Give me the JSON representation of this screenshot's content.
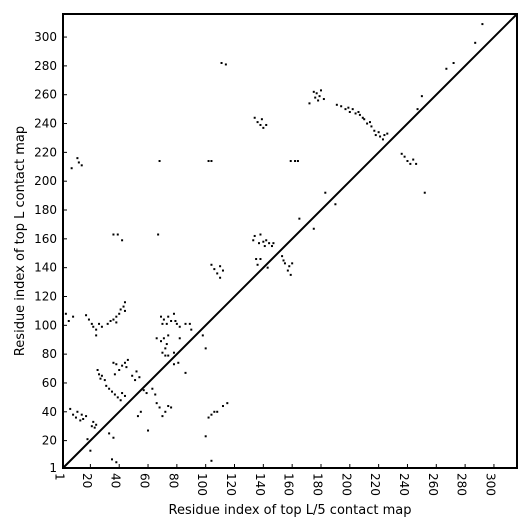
{
  "chart_data": {
    "type": "scatter",
    "title": "",
    "xlabel": "Residue index of top L/5 contact map",
    "ylabel": "Residue index of top L contact map",
    "xlim": [
      1,
      316
    ],
    "ylim": [
      1,
      316
    ],
    "xticks": [
      1,
      20,
      40,
      60,
      80,
      100,
      120,
      140,
      160,
      180,
      200,
      220,
      240,
      260,
      280,
      300
    ],
    "yticks": [
      1,
      20,
      40,
      60,
      80,
      100,
      120,
      140,
      160,
      180,
      200,
      220,
      240,
      260,
      280,
      300
    ],
    "grid": false,
    "diagonal": true,
    "marker_color": "#000000",
    "series": [
      {
        "points": [
          [
            11,
            216
          ],
          [
            12,
            213
          ],
          [
            14,
            211
          ],
          [
            7,
            209
          ],
          [
            3,
            108
          ],
          [
            5,
            103
          ],
          [
            8,
            106
          ],
          [
            17,
            107
          ],
          [
            19,
            104
          ],
          [
            21,
            101
          ],
          [
            22,
            99
          ],
          [
            24,
            97
          ],
          [
            24,
            93
          ],
          [
            26,
            101
          ],
          [
            28,
            99
          ],
          [
            32,
            101
          ],
          [
            34,
            103
          ],
          [
            36,
            104
          ],
          [
            38,
            102
          ],
          [
            38,
            106
          ],
          [
            40,
            108
          ],
          [
            41,
            111
          ],
          [
            43,
            113
          ],
          [
            44,
            116
          ],
          [
            44,
            110
          ],
          [
            36,
            163
          ],
          [
            39,
            163
          ],
          [
            42,
            159
          ],
          [
            66,
            91
          ],
          [
            69,
            89
          ],
          [
            71,
            91
          ],
          [
            73,
            87
          ],
          [
            74,
            93
          ],
          [
            68,
            214
          ],
          [
            67,
            163
          ],
          [
            69,
            106
          ],
          [
            70,
            101
          ],
          [
            71,
            104
          ],
          [
            74,
            106
          ],
          [
            73,
            101
          ],
          [
            76,
            103
          ],
          [
            78,
            108
          ],
          [
            79,
            103
          ],
          [
            80,
            101
          ],
          [
            82,
            99
          ],
          [
            86,
            101
          ],
          [
            89,
            101
          ],
          [
            90,
            97
          ],
          [
            72,
            84
          ],
          [
            74,
            79
          ],
          [
            78,
            73
          ],
          [
            82,
            91
          ],
          [
            86,
            67
          ],
          [
            98,
            93
          ],
          [
            100,
            84
          ],
          [
            100,
            23
          ],
          [
            102,
            214
          ],
          [
            104,
            214
          ],
          [
            104,
            142
          ],
          [
            106,
            139
          ],
          [
            108,
            136
          ],
          [
            110,
            133
          ],
          [
            110,
            141
          ],
          [
            112,
            138
          ],
          [
            111,
            282
          ],
          [
            114,
            281
          ],
          [
            102,
            36
          ],
          [
            104,
            38
          ],
          [
            106,
            40
          ],
          [
            108,
            40
          ],
          [
            112,
            44
          ],
          [
            115,
            46
          ],
          [
            104,
            6
          ],
          [
            134,
            244
          ],
          [
            136,
            241
          ],
          [
            138,
            239
          ],
          [
            139,
            243
          ],
          [
            140,
            237
          ],
          [
            142,
            239
          ],
          [
            133,
            159
          ],
          [
            134,
            162
          ],
          [
            137,
            157
          ],
          [
            138,
            163
          ],
          [
            140,
            158
          ],
          [
            141,
            155
          ],
          [
            142,
            159
          ],
          [
            144,
            157
          ],
          [
            146,
            155
          ],
          [
            147,
            157
          ],
          [
            135,
            146
          ],
          [
            136,
            142
          ],
          [
            138,
            146
          ],
          [
            143,
            140
          ],
          [
            153,
            148
          ],
          [
            154,
            145
          ],
          [
            155,
            143
          ],
          [
            157,
            138
          ],
          [
            158,
            141
          ],
          [
            159,
            135
          ],
          [
            160,
            143
          ],
          [
            159,
            214
          ],
          [
            162,
            214
          ],
          [
            164,
            214
          ],
          [
            165,
            174
          ],
          [
            175,
            167
          ],
          [
            172,
            254
          ],
          [
            175,
            262
          ],
          [
            176,
            258
          ],
          [
            177,
            261
          ],
          [
            178,
            256
          ],
          [
            179,
            259
          ],
          [
            180,
            263
          ],
          [
            182,
            257
          ],
          [
            183,
            192
          ],
          [
            190,
            184
          ],
          [
            191,
            253
          ],
          [
            194,
            252
          ],
          [
            197,
            250
          ],
          [
            199,
            251
          ],
          [
            200,
            248
          ],
          [
            202,
            250
          ],
          [
            204,
            247
          ],
          [
            206,
            248
          ],
          [
            207,
            246
          ],
          [
            209,
            244
          ],
          [
            210,
            243
          ],
          [
            212,
            240
          ],
          [
            214,
            241
          ],
          [
            215,
            238
          ],
          [
            217,
            235
          ],
          [
            218,
            232
          ],
          [
            220,
            234
          ],
          [
            221,
            231
          ],
          [
            223,
            229
          ],
          [
            224,
            232
          ],
          [
            226,
            233
          ],
          [
            236,
            219
          ],
          [
            238,
            217
          ],
          [
            240,
            214
          ],
          [
            242,
            212
          ],
          [
            244,
            215
          ],
          [
            246,
            212
          ],
          [
            247,
            250
          ],
          [
            250,
            259
          ],
          [
            252,
            192
          ],
          [
            267,
            278
          ],
          [
            272,
            282
          ],
          [
            287,
            296
          ],
          [
            292,
            309
          ],
          [
            6,
            42
          ],
          [
            8,
            38
          ],
          [
            10,
            36
          ],
          [
            11,
            40
          ],
          [
            13,
            34
          ],
          [
            14,
            38
          ],
          [
            15,
            35
          ],
          [
            17,
            37
          ],
          [
            18,
            21
          ],
          [
            20,
            13
          ],
          [
            21,
            30
          ],
          [
            22,
            33
          ],
          [
            23,
            29
          ],
          [
            24,
            31
          ],
          [
            25,
            69
          ],
          [
            26,
            66
          ],
          [
            27,
            63
          ],
          [
            28,
            65
          ],
          [
            30,
            62
          ],
          [
            31,
            58
          ],
          [
            33,
            56
          ],
          [
            35,
            54
          ],
          [
            37,
            52
          ],
          [
            39,
            50
          ],
          [
            41,
            48
          ],
          [
            42,
            53
          ],
          [
            44,
            51
          ],
          [
            35,
            7
          ],
          [
            38,
            5
          ],
          [
            33,
            25
          ],
          [
            36,
            22
          ],
          [
            37,
            66
          ],
          [
            40,
            69
          ],
          [
            42,
            72
          ],
          [
            44,
            74
          ],
          [
            45,
            71
          ],
          [
            46,
            76
          ],
          [
            38,
            73
          ],
          [
            36,
            74
          ],
          [
            49,
            65
          ],
          [
            51,
            62
          ],
          [
            52,
            68
          ],
          [
            54,
            64
          ],
          [
            53,
            37
          ],
          [
            55,
            40
          ],
          [
            57,
            55
          ],
          [
            59,
            53
          ],
          [
            60,
            27
          ],
          [
            63,
            56
          ],
          [
            65,
            52
          ],
          [
            66,
            46
          ],
          [
            68,
            43
          ],
          [
            70,
            37
          ],
          [
            72,
            40
          ],
          [
            74,
            44
          ],
          [
            76,
            43
          ],
          [
            70,
            81
          ],
          [
            72,
            79
          ],
          [
            78,
            81
          ],
          [
            81,
            74
          ]
        ]
      }
    ]
  }
}
